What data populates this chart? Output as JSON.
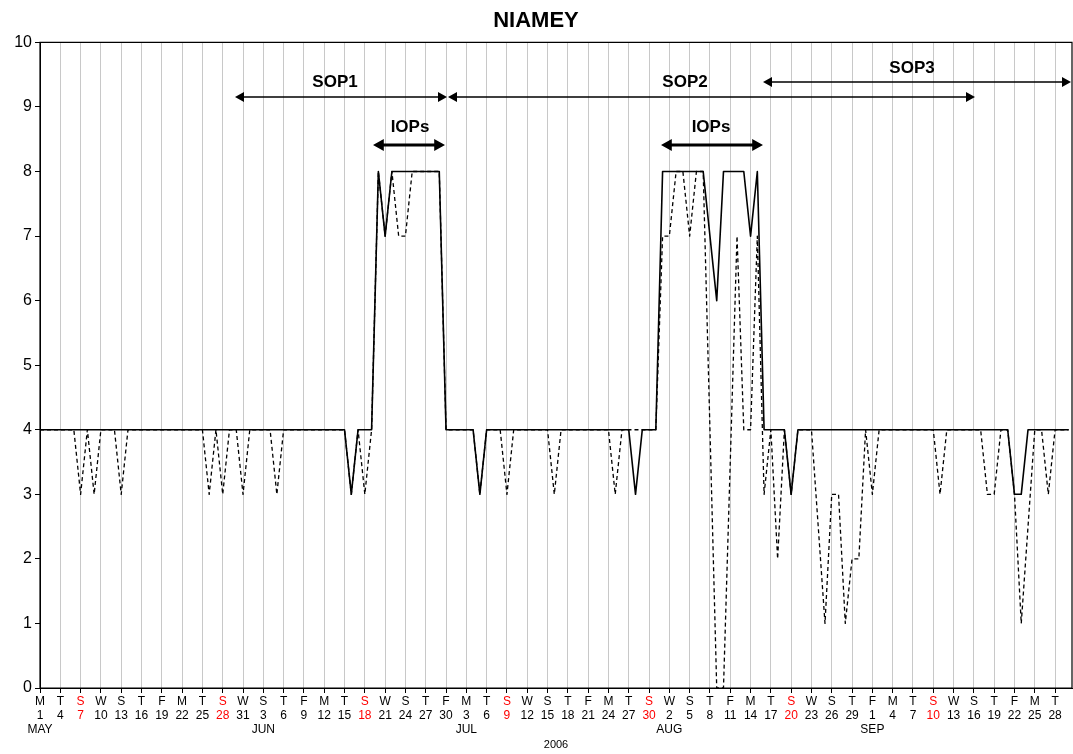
{
  "chart_data": {
    "type": "line",
    "title": "NIAMEY",
    "xlabel": "2006",
    "xlim": [
      "2006-05-01",
      "2006-09-30T12:00"
    ],
    "xticks": [
      {
        "value": "2006-05-01",
        "label": "M\n1\nMAY"
      },
      {
        "value": "2006-05-04",
        "label": "T\n4"
      },
      {
        "value": "2006-05-07",
        "label": "S\n7"
      },
      {
        "value": "2006-05-10",
        "label": "W\n10"
      },
      {
        "value": "2006-05-13",
        "label": "S\n13"
      },
      {
        "value": "2006-05-16",
        "label": "T\n16"
      },
      {
        "value": "2006-05-19",
        "label": "F\n19"
      },
      {
        "value": "2006-05-22",
        "label": "M\n22"
      },
      {
        "value": "2006-05-25",
        "label": "T\n25"
      },
      {
        "value": "2006-05-28",
        "label": "S\n28"
      },
      {
        "value": "2006-05-31",
        "label": "W\n31"
      },
      {
        "value": "2006-06-03",
        "label": "S\n3\nJUN"
      },
      {
        "value": "2006-06-06",
        "label": "T\n6"
      },
      {
        "value": "2006-06-09",
        "label": "F\n9"
      },
      {
        "value": "2006-06-12",
        "label": "M\n12"
      },
      {
        "value": "2006-06-15",
        "label": "T\n15"
      },
      {
        "value": "2006-06-18",
        "label": "S\n18"
      },
      {
        "value": "2006-06-21",
        "label": "W\n21"
      },
      {
        "value": "2006-06-24",
        "label": "S\n24"
      },
      {
        "value": "2006-06-27",
        "label": "T\n27"
      },
      {
        "value": "2006-06-30",
        "label": "F\n30"
      },
      {
        "value": "2006-07-03",
        "label": "M\n3\nJUL"
      },
      {
        "value": "2006-07-06",
        "label": "T\n6"
      },
      {
        "value": "2006-07-09",
        "label": "S\n9"
      },
      {
        "value": "2006-07-12",
        "label": "W\n12"
      },
      {
        "value": "2006-07-15",
        "label": "S\n15"
      },
      {
        "value": "2006-07-18",
        "label": "T\n18"
      },
      {
        "value": "2006-07-21",
        "label": "F\n21"
      },
      {
        "value": "2006-07-24",
        "label": "M\n24"
      },
      {
        "value": "2006-07-27",
        "label": "T\n27"
      },
      {
        "value": "2006-07-30",
        "label": "S\n30"
      },
      {
        "value": "2006-08-02",
        "label": "W\n2\nAUG"
      },
      {
        "value": "2006-08-05",
        "label": "S\n5"
      },
      {
        "value": "2006-08-08",
        "label": "T\n8"
      },
      {
        "value": "2006-08-11",
        "label": "F\n11"
      },
      {
        "value": "2006-08-14",
        "label": "M\n14"
      },
      {
        "value": "2006-08-17",
        "label": "T\n17"
      },
      {
        "value": "2006-08-20",
        "label": "S\n20"
      },
      {
        "value": "2006-08-23",
        "label": "W\n23"
      },
      {
        "value": "2006-08-26",
        "label": "S\n26"
      },
      {
        "value": "2006-08-29",
        "label": "T\n29"
      },
      {
        "value": "2006-09-01",
        "label": "F\n1\nSEP"
      },
      {
        "value": "2006-09-04",
        "label": "M\n4"
      },
      {
        "value": "2006-09-07",
        "label": "T\n7"
      },
      {
        "value": "2006-09-10",
        "label": "S\n10"
      },
      {
        "value": "2006-09-13",
        "label": "W\n13"
      },
      {
        "value": "2006-09-16",
        "label": "S\n16"
      },
      {
        "value": "2006-09-19",
        "label": "T\n19"
      },
      {
        "value": "2006-09-22",
        "label": "F\n22"
      },
      {
        "value": "2006-09-25",
        "label": "M\n25"
      },
      {
        "value": "2006-09-28",
        "label": "T\n28"
      }
    ],
    "ylim": [
      0,
      10
    ],
    "yticks": [
      0,
      1,
      2,
      3,
      4,
      5,
      6,
      7,
      8,
      9,
      10
    ],
    "grid": "x",
    "legend": false,
    "marker": "none",
    "series": [
      {
        "color": "#000000",
        "line_style": "dashed",
        "x": [
          "2006-05-01",
          "2006-05-06",
          "2006-05-07",
          "2006-05-08",
          "2006-05-09",
          "2006-05-10",
          "2006-05-12",
          "2006-05-13",
          "2006-05-14",
          "2006-05-25",
          "2006-05-26",
          "2006-05-27",
          "2006-05-28",
          "2006-05-29",
          "2006-05-30",
          "2006-05-31",
          "2006-06-01",
          "2006-06-04",
          "2006-06-05",
          "2006-06-06",
          "2006-06-15",
          "2006-06-16",
          "2006-06-17",
          "2006-06-18",
          "2006-06-19",
          "2006-06-20",
          "2006-06-21",
          "2006-06-22",
          "2006-06-23",
          "2006-06-24",
          "2006-06-25",
          "2006-06-29",
          "2006-06-30",
          "2006-07-04",
          "2006-07-05",
          "2006-07-06",
          "2006-07-08",
          "2006-07-09",
          "2006-07-10",
          "2006-07-15",
          "2006-07-16",
          "2006-07-17",
          "2006-07-24",
          "2006-07-25",
          "2006-07-26",
          "2006-07-31",
          "2006-08-01",
          "2006-08-02",
          "2006-08-03",
          "2006-08-04",
          "2006-08-05",
          "2006-08-06",
          "2006-08-07",
          "2006-08-09",
          "2006-08-10",
          "2006-08-12",
          "2006-08-13",
          "2006-08-14",
          "2006-08-15",
          "2006-08-16",
          "2006-08-17",
          "2006-08-18",
          "2006-08-19",
          "2006-08-20",
          "2006-08-21",
          "2006-08-23",
          "2006-08-25",
          "2006-08-26",
          "2006-08-27",
          "2006-08-28",
          "2006-08-29",
          "2006-08-30",
          "2006-08-31",
          "2006-09-01",
          "2006-09-02",
          "2006-09-10",
          "2006-09-11",
          "2006-09-12",
          "2006-09-17",
          "2006-09-18",
          "2006-09-19",
          "2006-09-20",
          "2006-09-21",
          "2006-09-22",
          "2006-09-23",
          "2006-09-25",
          "2006-09-26",
          "2006-09-27",
          "2006-09-28",
          "2006-09-30"
        ],
        "values": [
          4,
          4,
          3,
          4,
          3,
          4,
          4,
          3,
          4,
          4,
          3,
          4,
          3,
          4,
          4,
          3,
          4,
          4,
          3,
          4,
          4,
          3,
          4,
          3,
          4,
          8,
          7,
          8,
          7,
          7,
          8,
          8,
          4,
          4,
          3,
          4,
          4,
          3,
          4,
          4,
          3,
          4,
          4,
          3,
          4,
          4,
          7,
          7,
          8,
          8,
          7,
          8,
          8,
          0,
          0,
          7,
          4,
          4,
          7,
          3,
          4,
          2,
          4,
          3,
          4,
          4,
          1,
          3,
          3,
          1,
          2,
          2,
          4,
          3,
          4,
          4,
          3,
          4,
          4,
          3,
          3,
          4,
          4,
          3,
          1,
          4,
          4,
          3,
          4,
          4
        ]
      },
      {
        "color": "#000000",
        "line_style": "solid",
        "x": [
          "2006-05-01",
          "2006-06-15",
          "2006-06-16",
          "2006-06-17",
          "2006-06-19",
          "2006-06-20",
          "2006-06-21",
          "2006-06-22",
          "2006-06-29",
          "2006-06-30",
          "2006-07-04",
          "2006-07-05",
          "2006-07-06",
          "2006-07-27",
          "2006-07-28",
          "2006-07-29",
          "2006-07-31",
          "2006-08-01",
          "2006-08-07",
          "2006-08-09",
          "2006-08-10",
          "2006-08-13",
          "2006-08-14",
          "2006-08-15",
          "2006-08-16",
          "2006-08-19",
          "2006-08-20",
          "2006-08-21",
          "2006-09-21",
          "2006-09-22",
          "2006-09-23",
          "2006-09-24",
          "2006-09-30"
        ],
        "values": [
          4,
          4,
          3,
          4,
          4,
          8,
          7,
          8,
          8,
          4,
          4,
          3,
          4,
          4,
          3,
          4,
          4,
          8,
          8,
          6,
          8,
          8,
          7,
          8,
          4,
          4,
          3,
          4,
          4,
          3,
          3,
          4,
          4
        ]
      }
    ],
    "annotations": [
      "SOP1",
      "SOP2",
      "SOP3",
      "IOPs",
      "IOPs"
    ]
  }
}
